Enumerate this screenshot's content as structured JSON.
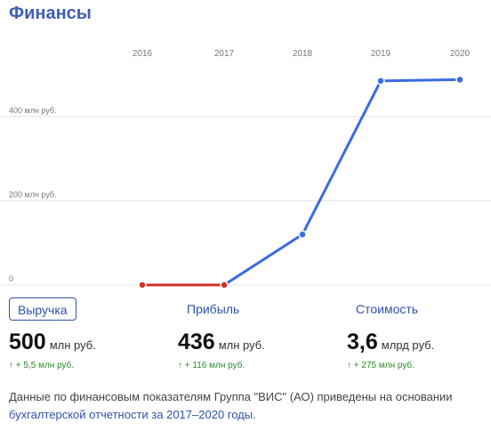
{
  "title": "Финансы",
  "chart_data": {
    "type": "line",
    "x": [
      "2016",
      "2017",
      "2018",
      "2019",
      "2020"
    ],
    "y_ticks": [
      {
        "value": 0,
        "label": "0"
      },
      {
        "value": 200,
        "label": "200 млн руб."
      },
      {
        "value": 400,
        "label": "400 млн руб."
      }
    ],
    "ylim": [
      0,
      520
    ],
    "series": [
      {
        "values": [
          0,
          0,
          120,
          485,
          488
        ]
      }
    ],
    "decline_color": "#d0312d",
    "growth_color": "#3b6be0"
  },
  "metrics": {
    "revenue": {
      "label": "Выручка",
      "value": "500",
      "unit": "млн руб.",
      "change": "↑ + 5,5 млн руб."
    },
    "profit": {
      "label": "Прибыль",
      "value": "436",
      "unit": "млн руб.",
      "change": "↑ + 116 млн руб."
    },
    "cost": {
      "label": "Стоимость",
      "value": "3,6",
      "unit": "млрд руб.",
      "change": "↑ + 275 млн руб."
    }
  },
  "note": {
    "text_1": "Данные по финансовым показателям Группа \"ВИС\" (АО) приведены на основании",
    "link": "бухгалтерской отчетности за 2017–2020 годы",
    "text_2": "."
  }
}
